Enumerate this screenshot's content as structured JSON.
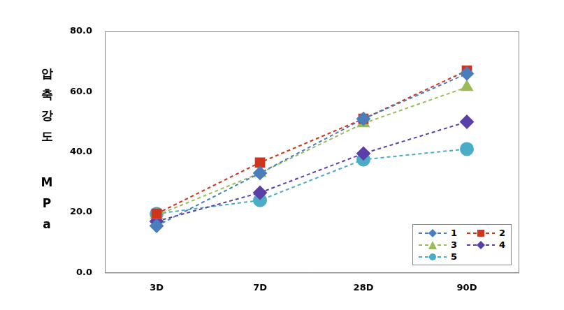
{
  "chart_data": {
    "type": "line",
    "ylabel": "압축강도 MPa",
    "categories": [
      "3D",
      "7D",
      "28D",
      "90D"
    ],
    "series": [
      {
        "name": "1",
        "color": "#4a7ebb",
        "marker": "diamond",
        "line_style": "dashed",
        "values": [
          15.5,
          33.0,
          51.0,
          66.0
        ]
      },
      {
        "name": "2",
        "color": "#d0341c",
        "marker": "square",
        "line_style": "dashed",
        "values": [
          19.5,
          36.5,
          51.0,
          67.0
        ]
      },
      {
        "name": "3",
        "color": "#9bbb59",
        "marker": "triangle",
        "line_style": "dashed",
        "values": [
          19.0,
          33.0,
          49.5,
          61.5
        ]
      },
      {
        "name": "4",
        "color": "#5b3fa8",
        "marker": "diamond",
        "line_style": "dashed",
        "values": [
          17.0,
          26.5,
          39.5,
          50.0
        ]
      },
      {
        "name": "5",
        "color": "#4bacc6",
        "marker": "circle",
        "line_style": "dashed",
        "values": [
          19.5,
          24.0,
          37.5,
          41.0
        ]
      }
    ],
    "ylim": [
      0,
      80
    ],
    "yticks": [
      {
        "value": 0,
        "label": "0.0"
      },
      {
        "value": 20,
        "label": "20.0"
      },
      {
        "value": 40,
        "label": "40.0"
      },
      {
        "value": 60,
        "label": "60.0"
      },
      {
        "value": 80,
        "label": "80.0"
      }
    ],
    "grid": false,
    "legend": "lower right"
  }
}
